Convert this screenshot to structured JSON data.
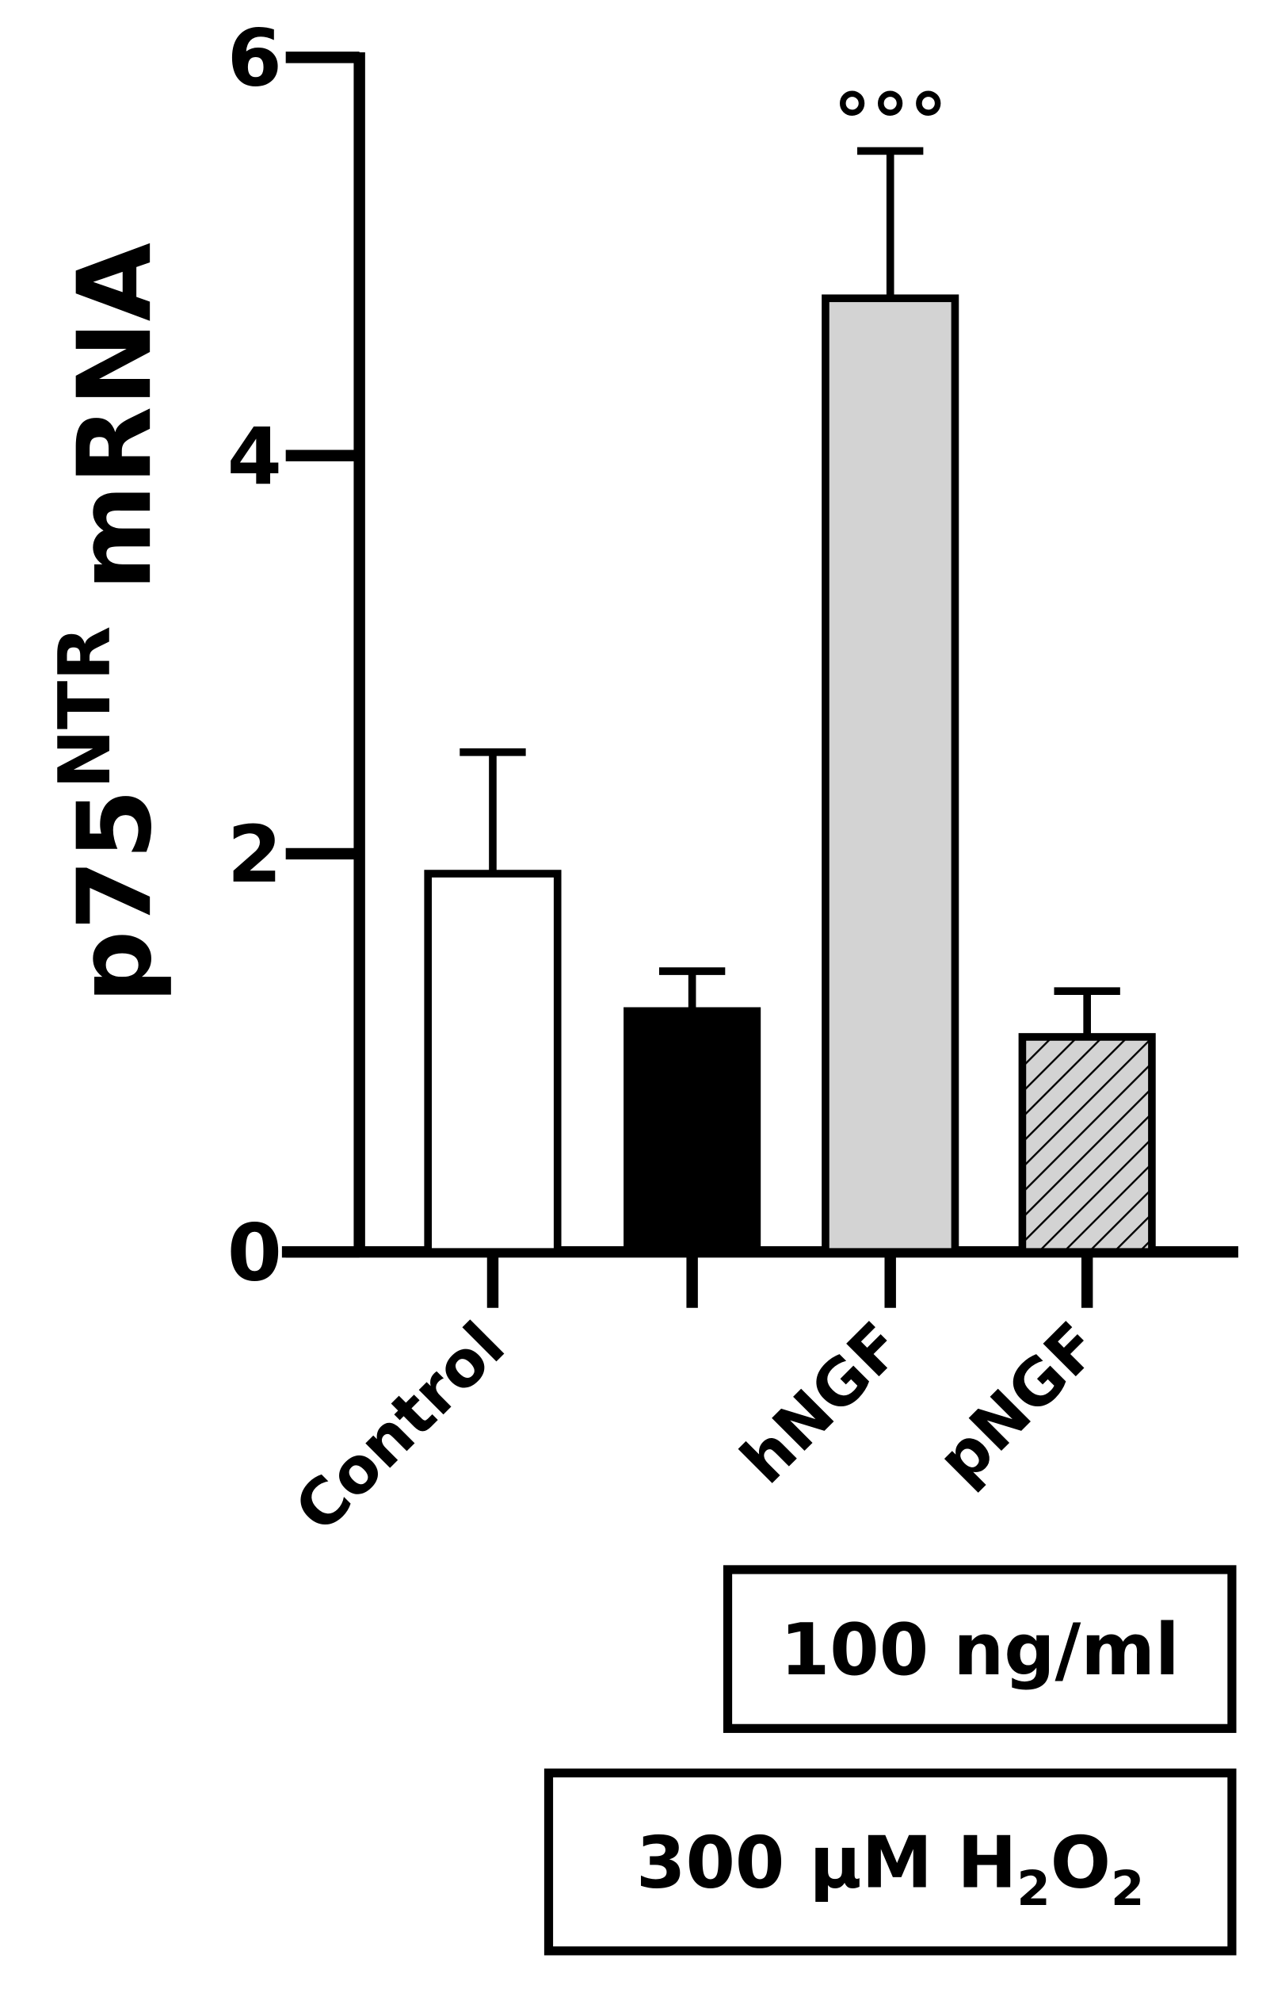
{
  "chart_data": {
    "type": "bar",
    "y_label": {
      "base": "p75",
      "sup": "NTR",
      "rest": "mRNA"
    },
    "categories": [
      "Control",
      null,
      "hNGF",
      "pNGF"
    ],
    "values": [
      1.9,
      1.21,
      4.79,
      1.08
    ],
    "errors": [
      0.61,
      0.2,
      0.74,
      0.23
    ],
    "colors": [
      "#ffffff",
      "#000000",
      "#d3d3d3",
      "#d3d3d3"
    ],
    "hatched": [
      false,
      false,
      false,
      true
    ],
    "annotation": {
      "category": 2,
      "text": "°°°"
    },
    "ylim": [
      0,
      6
    ],
    "yticks": [
      0,
      2,
      4,
      6
    ],
    "boxes": [
      {
        "parts": [
          {
            "text": "100 ng/ml",
            "sub": false
          }
        ]
      },
      {
        "parts": [
          {
            "text": "300 μM H",
            "sub": false
          },
          {
            "text": "2",
            "sub": true
          },
          {
            "text": "O",
            "sub": false
          },
          {
            "text": "2",
            "sub": true
          }
        ]
      }
    ]
  }
}
